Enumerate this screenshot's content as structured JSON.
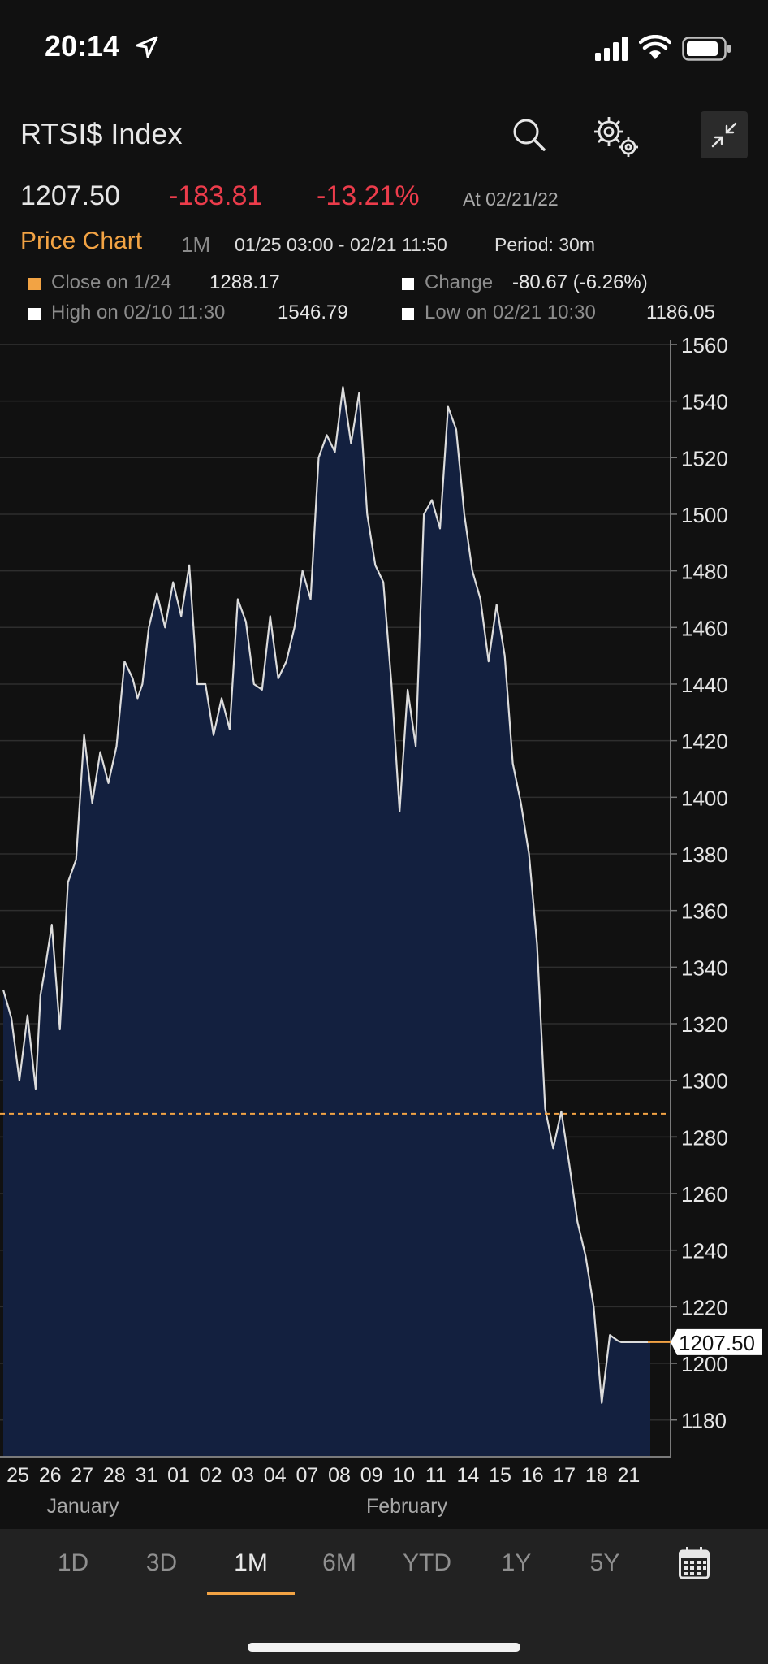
{
  "status_bar": {
    "time": "20:14",
    "icons": [
      "location-arrow-icon",
      "cellular-signal-icon",
      "wifi-icon",
      "battery-icon"
    ]
  },
  "header": {
    "title": "RTSI$ Index",
    "icons": [
      "search-icon",
      "settings-gears-icon",
      "collapse-icon"
    ]
  },
  "quote": {
    "last": "1207.50",
    "net_change": "-183.81",
    "pct_change": "-13.21%",
    "as_of": "At 02/21/22",
    "negative_color": "#ec3c4b"
  },
  "chart_header": {
    "title": "Price Chart",
    "range": "1M",
    "dates": "01/25 03:00 - 02/21 11:50",
    "period": "Period: 30m",
    "accent_color": "#f2a344"
  },
  "legend": {
    "close": {
      "label": "Close on 1/24",
      "value": "1288.17",
      "color": "#f2a344"
    },
    "change": {
      "label": "Change",
      "value": "-80.67 (-6.26%)",
      "color": "#ffffff"
    },
    "high": {
      "label": "High on 02/10 11:30",
      "value": "1546.79",
      "color": "#ffffff"
    },
    "low": {
      "label": "Low on 02/21 10:30",
      "value": "1186.05",
      "color": "#ffffff"
    }
  },
  "chart_data": {
    "type": "area",
    "title": "",
    "xlabel": "",
    "ylabel": "",
    "y_ticks": [
      1180,
      1200,
      1220,
      1240,
      1260,
      1280,
      1300,
      1320,
      1340,
      1360,
      1380,
      1400,
      1420,
      1440,
      1460,
      1480,
      1500,
      1520,
      1540,
      1560
    ],
    "ylim": [
      1167,
      1564
    ],
    "x_tick_labels": [
      "25",
      "26",
      "27",
      "28",
      "31",
      "01",
      "02",
      "03",
      "04",
      "07",
      "08",
      "09",
      "10",
      "11",
      "14",
      "15",
      "16",
      "17",
      "18",
      "21"
    ],
    "month_labels": [
      "January",
      "February"
    ],
    "reference_line": {
      "value": 1288.17,
      "color": "#f2a344",
      "style": "dashed"
    },
    "last_value_label": "1207.50",
    "last_value": 1207.5,
    "fill_color": "#13203f",
    "line_color": "#dcdcdc",
    "grid": true,
    "series": [
      {
        "x": [
          0,
          0.25,
          0.5,
          0.75,
          1,
          1.15,
          1.3,
          1.5,
          1.75,
          2,
          2.25,
          2.5,
          2.75,
          3,
          3.25,
          3.5,
          3.75,
          4,
          4.15,
          4.3,
          4.5,
          4.75,
          5,
          5.25,
          5.5,
          5.75,
          6,
          6.25,
          6.5,
          6.75,
          7,
          7.25,
          7.5,
          7.75,
          8,
          8.25,
          8.5,
          8.75,
          9,
          9.25,
          9.5,
          9.75,
          10,
          10.25,
          10.5,
          10.75,
          11,
          11.25,
          11.5,
          11.75,
          12,
          12.25,
          12.5,
          12.75,
          13,
          13.25,
          13.5,
          13.75,
          14,
          14.25,
          14.5,
          14.75,
          15,
          15.25,
          15.5,
          15.75,
          16,
          16.25,
          16.5,
          16.75,
          17,
          17.25,
          17.5,
          17.75,
          18,
          18.25,
          18.5,
          18.75,
          19,
          19.1,
          19.2,
          19.3,
          19.4,
          19.5,
          19.6,
          19.7,
          19.8,
          19.9,
          20
        ],
        "values": [
          1332,
          1322,
          1300,
          1323,
          1297,
          1330,
          1340,
          1355,
          1318,
          1370,
          1378,
          1422,
          1398,
          1416,
          1405,
          1418,
          1448,
          1442,
          1435,
          1440,
          1460,
          1472,
          1460,
          1476,
          1464,
          1482,
          1440,
          1440,
          1422,
          1435,
          1424,
          1470,
          1462,
          1440,
          1438,
          1464,
          1442,
          1448,
          1460,
          1480,
          1470,
          1520,
          1528,
          1522,
          1545,
          1525,
          1543,
          1500,
          1482,
          1476,
          1440,
          1395,
          1438,
          1418,
          1500,
          1505,
          1495,
          1538,
          1530,
          1500,
          1480,
          1470,
          1448,
          1468,
          1450,
          1412,
          1398,
          1380,
          1348,
          1290,
          1276,
          1289,
          1270,
          1250,
          1238,
          1220,
          1186,
          1210,
          1208,
          1207.5,
          1207.5,
          1207.5,
          1207.5,
          1207.5,
          1207.5,
          1207.5,
          1207.5,
          1207.5,
          1207.5
        ]
      }
    ]
  },
  "tabs": [
    {
      "label": "1D"
    },
    {
      "label": "3D"
    },
    {
      "label": "1M",
      "active": true
    },
    {
      "label": "6M"
    },
    {
      "label": "YTD"
    },
    {
      "label": "1Y"
    },
    {
      "label": "5Y"
    }
  ],
  "tabs_icon": "calendar-icon"
}
